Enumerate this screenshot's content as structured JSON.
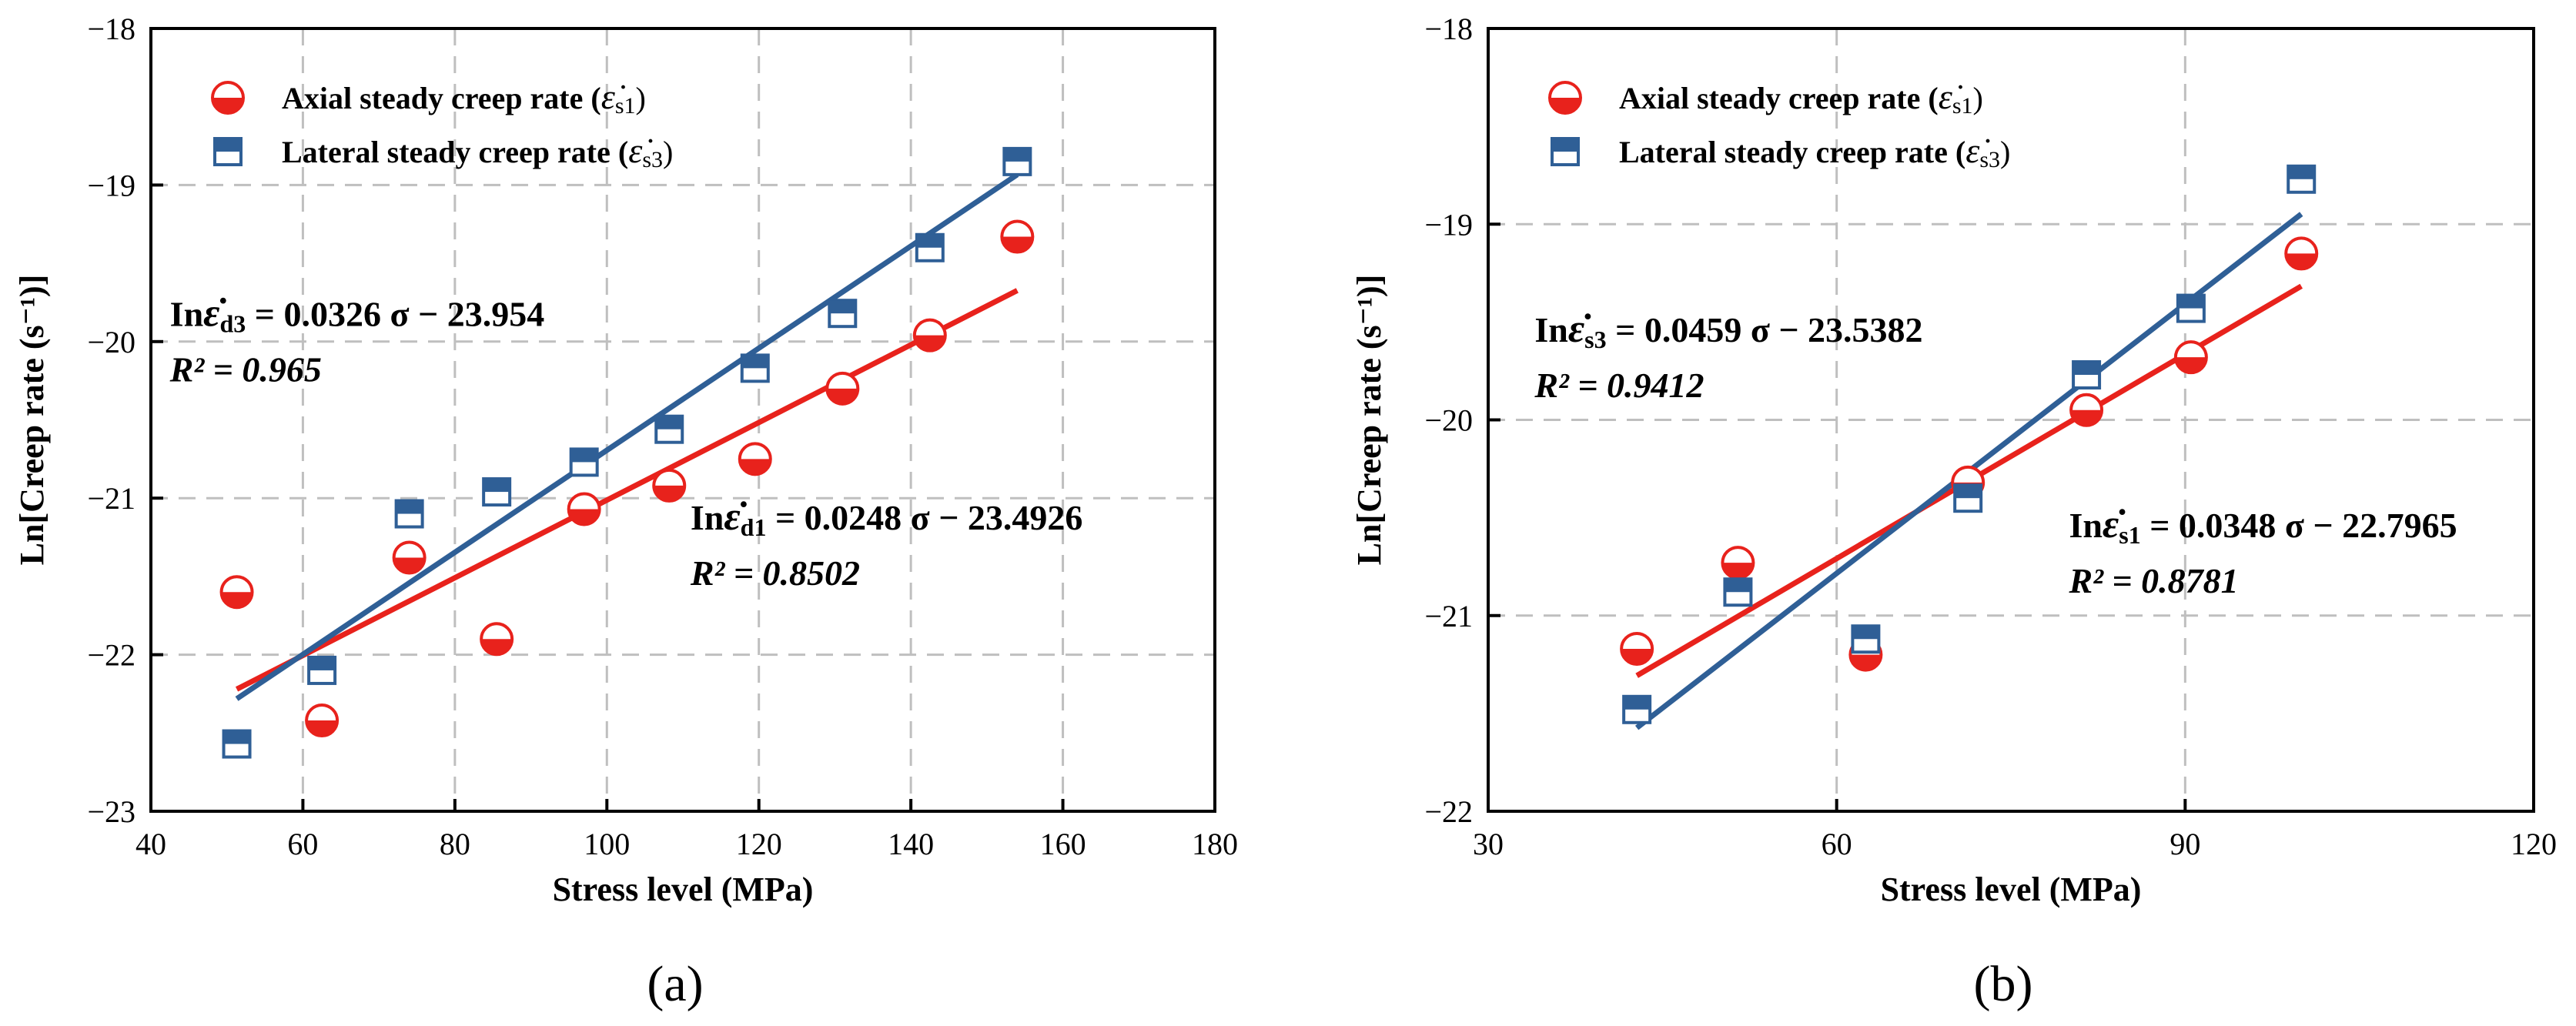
{
  "colors": {
    "axial": "#e8221c",
    "lateral": "#2f5f96",
    "axis": "#000000",
    "grid": "#bfbfbf"
  },
  "chart_data": [
    {
      "type": "scatter",
      "panel_label": "(a)",
      "xlabel": "Stress level (MPa)",
      "ylabel": "Ln[Creep rate (s⁻¹)]",
      "xlim": [
        40,
        180
      ],
      "ylim": [
        -23,
        -18
      ],
      "xticks": [
        "40",
        "60",
        "80",
        "100",
        "120",
        "140",
        "160",
        "180"
      ],
      "yticks": [
        "−18",
        "−19",
        "−20",
        "−21",
        "−22",
        "−23"
      ],
      "grid": true,
      "legend_position": "top-left",
      "series": [
        {
          "name": "Axial steady creep rate (ε̇s1)",
          "legend_text": "Axial steady creep rate (",
          "legend_sym": "ε̇",
          "legend_sub": "s1",
          "marker": "circle-half",
          "color": "#e8221c",
          "x": [
            51.3,
            62.5,
            74.0,
            85.5,
            97.0,
            108.2,
            119.5,
            131.0,
            142.5,
            154.0
          ],
          "y": [
            -21.6,
            -22.42,
            -21.38,
            -21.9,
            -21.07,
            -20.92,
            -20.75,
            -20.3,
            -19.96,
            -19.33
          ],
          "fit": {
            "slope": 0.0248,
            "intercept": -23.4926,
            "x_range": [
              51.3,
              154.0
            ]
          }
        },
        {
          "name": "Lateral steady creep rate (ε̇s3)",
          "legend_text": "Lateral steady creep rate (",
          "legend_sym": "ε̇",
          "legend_sub": "s3",
          "marker": "square-half",
          "color": "#2f5f96",
          "x": [
            51.3,
            62.5,
            74.0,
            85.5,
            97.0,
            108.2,
            119.5,
            131.0,
            142.5,
            154.0
          ],
          "y": [
            -22.57,
            -22.1,
            -21.1,
            -20.96,
            -20.77,
            -20.56,
            -20.17,
            -19.82,
            -19.4,
            -18.85
          ],
          "fit": {
            "slope": 0.0326,
            "intercept": -23.954,
            "x_range": [
              51.3,
              154.0
            ]
          }
        }
      ],
      "annotations": [
        {
          "eq_pre": "In",
          "eq_sym": "ε̇",
          "eq_sub": "d3",
          "eq_rest": " = 0.0326 σ − 23.954",
          "r2": "R² = 0.965",
          "at_x": 42.5,
          "at_y": -19.9
        },
        {
          "eq_pre": "In",
          "eq_sym": "ε̇",
          "eq_sub": "d1",
          "eq_rest": " = 0.0248 σ − 23.4926",
          "r2": "R² = 0.8502",
          "at_x": 111,
          "at_y": -21.2
        }
      ]
    },
    {
      "type": "scatter",
      "panel_label": "(b)",
      "xlabel": "Stress level (MPa)",
      "ylabel": "Ln[Creep rate (s⁻¹)]",
      "xlim": [
        30,
        120
      ],
      "ylim": [
        -22,
        -18
      ],
      "xticks": [
        "30",
        "60",
        "90",
        "120"
      ],
      "yticks": [
        "−18",
        "−19",
        "−20",
        "−21",
        "−22"
      ],
      "grid": true,
      "legend_position": "top-left",
      "series": [
        {
          "name": "Axial steady creep rate (ε̇s1)",
          "legend_text": "Axial steady creep rate (",
          "legend_sym": "ε̇",
          "legend_sub": "s1",
          "marker": "circle-half",
          "color": "#e8221c",
          "x": [
            42.8,
            51.5,
            62.5,
            71.3,
            81.5,
            90.5,
            100.0
          ],
          "y": [
            -21.17,
            -20.73,
            -21.2,
            -20.32,
            -19.95,
            -19.68,
            -19.15
          ],
          "fit": {
            "slope": 0.0348,
            "intercept": -22.7965,
            "x_range": [
              42.8,
              100.0
            ]
          }
        },
        {
          "name": "Lateral steady creep rate (ε̇s3)",
          "legend_text": "Lateral steady creep rate (",
          "legend_sym": "ε̇",
          "legend_sub": "s3",
          "marker": "square-half",
          "color": "#2f5f96",
          "x": [
            42.8,
            51.5,
            62.5,
            71.3,
            81.5,
            90.5,
            100.0
          ],
          "y": [
            -21.48,
            -20.88,
            -21.12,
            -20.4,
            -19.77,
            -19.43,
            -18.77
          ],
          "fit": {
            "slope": 0.0459,
            "intercept": -23.5382,
            "x_range": [
              42.8,
              100.0
            ]
          }
        }
      ],
      "annotations": [
        {
          "eq_pre": "In",
          "eq_sym": "ε̇",
          "eq_sub": "s3",
          "eq_rest": " = 0.0459 σ − 23.5382",
          "r2": "R² = 0.9412",
          "at_x": 34,
          "at_y": -19.6
        },
        {
          "eq_pre": "In",
          "eq_sym": "ε̇",
          "eq_sub": "s1",
          "eq_rest": " = 0.0348 σ − 22.7965",
          "r2": "R² = 0.8781",
          "at_x": 80,
          "at_y": -20.6
        }
      ]
    }
  ]
}
